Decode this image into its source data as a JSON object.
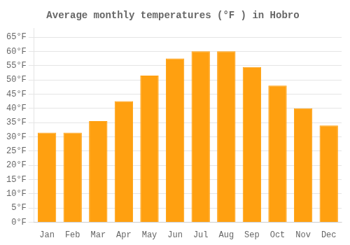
{
  "chart_data": {
    "type": "bar",
    "title": "Average monthly temperatures (°F ) in Hobro",
    "categories": [
      "Jan",
      "Feb",
      "Mar",
      "Apr",
      "May",
      "Jun",
      "Jul",
      "Aug",
      "Sep",
      "Oct",
      "Nov",
      "Dec"
    ],
    "values": [
      31.5,
      31.5,
      35.5,
      42.5,
      51.5,
      57.5,
      60.0,
      60.0,
      54.5,
      48.0,
      40.0,
      34.0
    ],
    "color": "#FFA010",
    "ylim": [
      0,
      68
    ],
    "yticks": [
      {
        "value": 0,
        "label": "0°F"
      },
      {
        "value": 5,
        "label": "5°F"
      },
      {
        "value": 10,
        "label": "10°F"
      },
      {
        "value": 15,
        "label": "15°F"
      },
      {
        "value": 20,
        "label": "20°F"
      },
      {
        "value": 25,
        "label": "25°F"
      },
      {
        "value": 30,
        "label": "30°F"
      },
      {
        "value": 35,
        "label": "35°F"
      },
      {
        "value": 40,
        "label": "40°F"
      },
      {
        "value": 45,
        "label": "45°F"
      },
      {
        "value": 50,
        "label": "50°F"
      },
      {
        "value": 55,
        "label": "55°F"
      },
      {
        "value": 60,
        "label": "60°F"
      },
      {
        "value": 65,
        "label": "65°F"
      }
    ],
    "grid": true
  }
}
